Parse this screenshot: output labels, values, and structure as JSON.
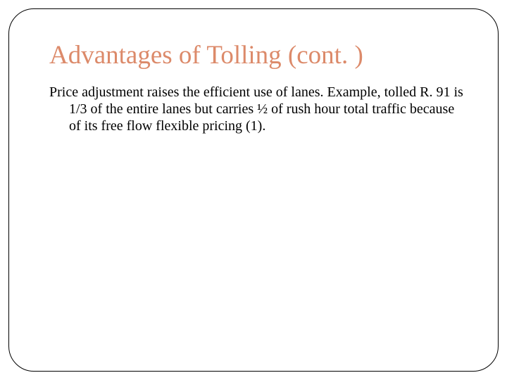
{
  "slide": {
    "title": "Advantages of Tolling (cont. )",
    "body": "Price adjustment raises the efficient use of lanes.  Example, tolled R. 91 is 1/3 of the entire lanes but carries ½ of rush hour total traffic because of its free flow flexible pricing (1).",
    "title_color": "#dc8a6a",
    "body_color": "#000000",
    "border_color": "#000000",
    "background_color": "#ffffff",
    "title_fontsize": 37,
    "body_fontsize": 20,
    "border_radius": 36
  }
}
